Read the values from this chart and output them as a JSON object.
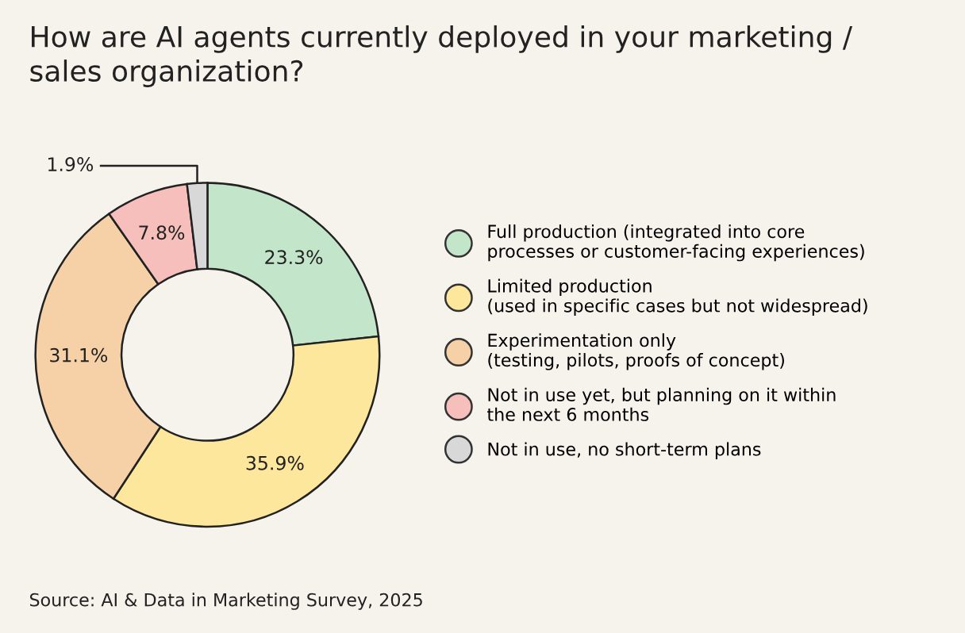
{
  "chart_data": {
    "type": "donut",
    "title": "How are AI agents currently deployed in your marketing /\nsales organization?",
    "categories": [
      "Full production (integrated into core\nprocesses or customer-facing experiences)",
      "Limited production\n(used in specific cases but not widespread)",
      "Experimentation only\n(testing, pilots, proofs of concept)",
      "Not in use yet, but planning on it within\nthe next 6 months",
      "Not in use, no short-term plans"
    ],
    "values": [
      23.3,
      35.9,
      31.1,
      7.8,
      1.9
    ],
    "colors": [
      "#c3e6cb",
      "#fde79c",
      "#f6d1a8",
      "#f6bfbb",
      "#d8d8d8"
    ],
    "value_labels": [
      "23.3%",
      "35.9%",
      "31.1%",
      "7.8%",
      "1.9%"
    ],
    "legend": "right",
    "annotations": [
      "Source: AI & Data in Marketing Survey, 2025"
    ]
  }
}
